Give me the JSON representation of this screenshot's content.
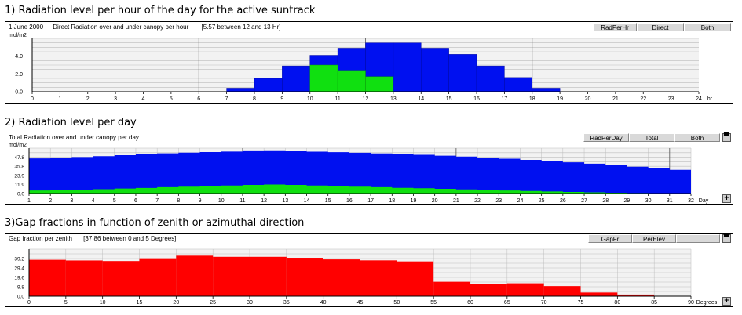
{
  "sections": [
    {
      "heading": "1) Radiation level per hour of the day for the active suntrack",
      "info_date": "1 June 2000",
      "info_title": "Direct Radiation over and under canopy per hour",
      "info_extra": "[5.57 between 12 and 13 Hr]",
      "buttons": [
        "RadPerHr",
        "Direct",
        "Both"
      ]
    },
    {
      "heading": "2) Radiation level per day",
      "info_title": "Total Radiation over and under canopy per day",
      "buttons": [
        "RadPerDay",
        "Total",
        "Both"
      ]
    },
    {
      "heading": "3)Gap fractions in function of zenith or azimuthal direction",
      "info_title": "Gap fraction per zenith",
      "info_extra": "[37.86 between 0 and 5 Degrees]",
      "buttons": [
        "GapFr",
        "PerElev"
      ]
    }
  ],
  "colors": {
    "over": "#0010f0",
    "under": "#10e010",
    "gap": "#ff0000",
    "grid": "#bdbdbd"
  },
  "chart_data": [
    {
      "type": "bar",
      "ylabel": "mol/m2",
      "xunit": "hr",
      "x_ticks": [
        "0",
        "1",
        "2",
        "3",
        "4",
        "5",
        "6",
        "7",
        "8",
        "9",
        "10",
        "11",
        "12",
        "13",
        "14",
        "15",
        "16",
        "17",
        "18",
        "19",
        "20",
        "21",
        "22",
        "23",
        "24"
      ],
      "y_ticks": [
        "0.0",
        "2.0",
        "4.0"
      ],
      "xlim": [
        0,
        24
      ],
      "ylim": [
        0,
        6.0
      ],
      "series": [
        {
          "values": [
            0,
            0,
            0,
            0,
            0,
            0,
            0,
            0.4,
            1.5,
            2.9,
            4.1,
            4.9,
            5.5,
            5.5,
            4.9,
            4.2,
            2.9,
            1.6,
            0.4,
            0,
            0,
            0,
            0,
            0
          ]
        },
        {
          "values": [
            0,
            0,
            0,
            0,
            0,
            0,
            0,
            0,
            0,
            0,
            3.0,
            2.4,
            1.7,
            0,
            0,
            0,
            0,
            0,
            0,
            0,
            0,
            0,
            0,
            0
          ]
        }
      ]
    },
    {
      "type": "area",
      "ylabel": "mol/m2",
      "xunit": "Day",
      "x_ticks": [
        "1",
        "2",
        "3",
        "4",
        "5",
        "6",
        "7",
        "8",
        "9",
        "10",
        "11",
        "12",
        "13",
        "14",
        "15",
        "16",
        "17",
        "18",
        "19",
        "20",
        "21",
        "22",
        "23",
        "24",
        "25",
        "26",
        "27",
        "28",
        "29",
        "30",
        "31",
        "32"
      ],
      "y_ticks": [
        "0.0",
        "11.9",
        "23.9",
        "35.8",
        "47.8"
      ],
      "xlim": [
        1,
        32
      ],
      "ylim": [
        0,
        59.7
      ],
      "series": [
        {
          "values": [
            46.2,
            47.0,
            48.0,
            49.2,
            50.5,
            51.8,
            52.9,
            53.8,
            54.6,
            55.2,
            55.7,
            55.9,
            55.6,
            55.1,
            54.4,
            53.6,
            52.8,
            51.9,
            50.9,
            49.8,
            48.6,
            47.2,
            45.8,
            44.3,
            42.7,
            41.0,
            39.2,
            37.2,
            35.2,
            33.2,
            31.2,
            29.2
          ]
        },
        {
          "values": [
            4.0,
            4.5,
            5.0,
            5.7,
            6.5,
            7.3,
            8.3,
            9.0,
            9.8,
            10.5,
            11.3,
            11.8,
            11.3,
            10.6,
            9.8,
            9.0,
            8.3,
            7.5,
            6.9,
            6.2,
            5.4,
            4.7,
            4.0,
            3.3,
            2.7,
            2.0,
            1.5,
            1.0,
            0.7,
            0.3,
            0,
            0
          ]
        }
      ]
    },
    {
      "type": "bar",
      "xunit": "Degrees",
      "x_ticks": [
        "0",
        "5",
        "10",
        "15",
        "20",
        "25",
        "30",
        "35",
        "40",
        "45",
        "50",
        "55",
        "60",
        "65",
        "70",
        "75",
        "80",
        "85",
        "90"
      ],
      "y_ticks": [
        "0.0",
        "9.8",
        "19.6",
        "29.4",
        "39.2"
      ],
      "xlim": [
        0,
        90
      ],
      "ylim": [
        0,
        49.0
      ],
      "series": [
        {
          "values": [
            37.9,
            37.2,
            36.6,
            39.5,
            42.2,
            41.0,
            41.0,
            40.0,
            38.3,
            37.3,
            36.2,
            15.0,
            12.8,
            13.4,
            10.5,
            3.8,
            1.7,
            0
          ]
        }
      ]
    }
  ]
}
